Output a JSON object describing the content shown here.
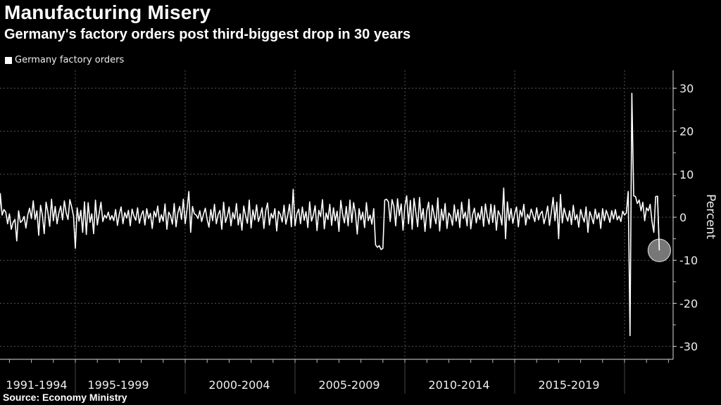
{
  "chart_data": {
    "type": "line",
    "title": "Manufacturing Misery",
    "subtitle": "Germany's factory orders post third-biggest drop in 30 years",
    "source": "Source: Economy Ministry",
    "ylabel": "Percent",
    "xlabel": "",
    "ylim": [
      -33,
      34
    ],
    "yticks": [
      30,
      20,
      10,
      0,
      -10,
      -20,
      -30
    ],
    "ytick_labels": [
      "30",
      "20",
      "10",
      "0",
      "-10",
      "-20",
      "-30"
    ],
    "x_period_labels": [
      "1991-1994",
      "1995-1999",
      "2000-2004",
      "2005-2009",
      "2010-2014",
      "2015-2019"
    ],
    "x_start": "1991-07",
    "x_frequency": "monthly",
    "grid": true,
    "legend_position": "top-left",
    "highlight": "last point",
    "colors": {
      "background": "#000000",
      "line": "#ffffff",
      "highlight": "#777777",
      "grid": "#666666"
    },
    "series": [
      {
        "name": "Germany factory orders",
        "values": [
          -4.5,
          5.5,
          0.5,
          1.8,
          1.2,
          -1.5,
          0.8,
          -2.8,
          -1.2,
          -0.5,
          -5.5,
          1.5,
          -1.2,
          -0.8,
          0.2,
          -2.5,
          0.5,
          2.1,
          -0.3,
          3.8,
          -0.5,
          1.5,
          -4.2,
          2.8,
          0.5,
          -3.8,
          3.5,
          1.2,
          -2.1,
          4.2,
          -0.8,
          2.5,
          -1.5,
          1.0,
          2.6,
          -0.6,
          3.8,
          1.0,
          -0.5,
          4.1,
          2.4,
          0.3,
          -7.2,
          2.2,
          -0.9,
          1.6,
          -3.5,
          3.6,
          -4.0,
          3.4,
          -1.2,
          0.8,
          -3.8,
          4.0,
          -1.8,
          0.9,
          3.5,
          -1.0,
          0.5,
          -0.2,
          1.2,
          -0.6,
          0.4,
          -0.8,
          1.8,
          -1.9,
          0.7,
          2.4,
          -1.5,
          1.1,
          -0.2,
          1.6,
          -2.0,
          1.9,
          0.3,
          -0.7,
          2.2,
          -1.4,
          0.5,
          1.5,
          -1.8,
          2.0,
          -0.3,
          0.9,
          -2.6,
          1.4,
          0.1,
          2.6,
          -1.2,
          0.6,
          -0.9,
          3.1,
          -2.8,
          1.2,
          0.4,
          -1.6,
          3.2,
          -2.2,
          1.0,
          2.5,
          -0.5,
          4.2,
          -1.5,
          1.8,
          6.0,
          -3.5,
          2.5,
          0.8,
          0.5,
          -0.3,
          1.5,
          -1.0,
          0.7,
          2.1,
          -0.5,
          -2.3,
          1.8,
          -0.8,
          3.0,
          -1.5,
          0.6,
          1.6,
          -2.8,
          3.5,
          -1.2,
          0.2,
          2.4,
          -2.0,
          1.1,
          -0.4,
          3.2,
          -1.8,
          0.8,
          -3.0,
          2.6,
          0.3,
          -1.4,
          4.0,
          -2.5,
          1.7,
          -0.6,
          2.9,
          -1.0,
          0.4,
          2.2,
          -2.6,
          1.5,
          3.3,
          -1.8,
          0.9,
          -0.2,
          2.0,
          -3.2,
          1.4,
          0.6,
          -1.1,
          2.8,
          -1.6,
          0.4,
          3.0,
          -2.2,
          6.5,
          -2.0,
          0.8,
          1.9,
          -1.5,
          2.4,
          -0.7,
          1.3,
          -2.4,
          3.6,
          -0.9,
          0.5,
          2.7,
          -3.1,
          1.6,
          0.2,
          4.1,
          -2.7,
          1.0,
          -0.5,
          3.0,
          -1.9,
          2.2,
          -0.8,
          1.4,
          -3.3,
          3.9,
          0.7,
          -1.3,
          2.5,
          -2.0,
          4.0,
          -1.2,
          3.4,
          0.9,
          -3.9,
          2.0,
          -0.6,
          1.2,
          -2.4,
          3.4,
          -0.8,
          0.5,
          -1.6,
          2.0,
          -6.4,
          -7.0,
          -6.6,
          -7.5,
          -7.2,
          4.0,
          4.2,
          3.6,
          -1.0,
          4.1,
          2.5,
          -2.0,
          4.3,
          0.4,
          3.1,
          -3.0,
          2.6,
          5.0,
          -1.5,
          3.9,
          -2.8,
          4.4,
          1.1,
          -2.2,
          4.6,
          -0.5,
          2.0,
          -3.3,
          1.5,
          3.5,
          -2.5,
          2.8,
          0.4,
          -1.5,
          4.5,
          -3.2,
          1.9,
          -0.7,
          3.2,
          -2.6,
          1.0,
          0.3,
          -1.9,
          2.9,
          -0.9,
          1.8,
          -2.4,
          3.5,
          -0.3,
          1.2,
          -2.0,
          4.2,
          -2.7,
          0.6,
          2.1,
          -1.3,
          1.0,
          -0.5,
          2.5,
          -2.1,
          3.1,
          0.2,
          -1.6,
          3.0,
          -1.2,
          2.8,
          -3.0,
          1.5,
          0.5,
          -1.8,
          6.8,
          -5.0,
          3.6,
          -0.7,
          2.0,
          -1.4,
          0.9,
          2.4,
          -2.2,
          1.6,
          0.2,
          3.0,
          -1.8,
          0.7,
          -0.4,
          1.9,
          0.5,
          -1.0,
          2.2,
          -0.6,
          0.8,
          1.4,
          -1.5,
          0.3,
          2.6,
          -1.9,
          1.2,
          4.6,
          -0.8,
          3.5,
          -5.0,
          5.3,
          -1.3,
          2.1,
          0.4,
          -0.9,
          1.5,
          -1.7,
          2.8,
          -0.6,
          0.6,
          -2.3,
          1.8,
          0.2,
          -1.1,
          2.4,
          -3.5,
          1.3,
          0.1,
          -1.5,
          1.9,
          -0.4,
          1.0,
          -2.6,
          2.0,
          -0.8,
          1.6,
          0.4,
          -1.2,
          1.5,
          -0.4,
          1.8,
          -0.6,
          0.3,
          -1.0,
          1.4,
          0.5,
          1.0,
          6.0,
          -27.5,
          28.8,
          5.0,
          4.8,
          3.2,
          4.0,
          1.5,
          3.5,
          -0.8,
          2.2,
          1.5,
          3.0,
          -1.0,
          -3.5,
          4.8,
          4.9,
          -7.7
        ]
      }
    ]
  }
}
